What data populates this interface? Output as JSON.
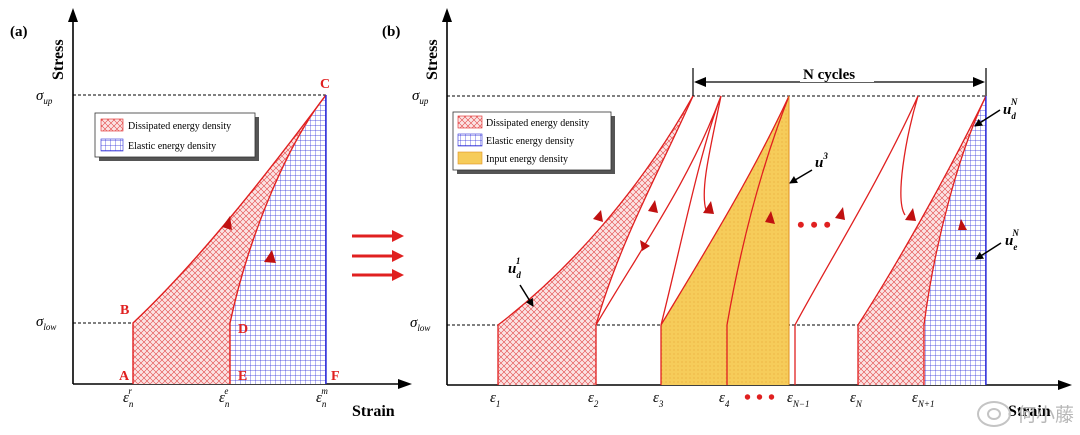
{
  "panel_a": {
    "label": "(a)",
    "y_axis_title": "Stress",
    "x_axis_title": "Strain",
    "sigma_up": "σ",
    "sigma_up_sub": "up",
    "sigma_low": "σ",
    "sigma_low_sub": "low",
    "points": {
      "A": "A",
      "B": "B",
      "C": "C",
      "D": "D",
      "E": "E",
      "F": "F"
    },
    "x_ticks": [
      {
        "main": "ε",
        "sub": "n",
        "sup": "r"
      },
      {
        "main": "ε",
        "sub": "n",
        "sup": "e"
      },
      {
        "main": "ε",
        "sub": "n",
        "sup": "m"
      }
    ],
    "legend": [
      "Dissipated energy density",
      "Elastic energy density"
    ]
  },
  "arrows_between": "⇒",
  "panel_b": {
    "label": "(b)",
    "y_axis_title": "Stress",
    "x_axis_title": "Strain",
    "sigma_up": "σ",
    "sigma_up_sub": "up",
    "sigma_low": "σ",
    "sigma_low_sub": "low",
    "n_cycles": "N cycles",
    "legend": [
      "Dissipated energy density",
      "Elastic energy density",
      "Input energy density"
    ],
    "x_ticks": [
      {
        "main": "ε",
        "sub": "1"
      },
      {
        "main": "ε",
        "sub": "2"
      },
      {
        "main": "ε",
        "sub": "3"
      },
      {
        "main": "ε",
        "sub": "4"
      },
      {
        "main": "ε",
        "sub": "N−1"
      },
      {
        "main": "ε",
        "sub": "N"
      },
      {
        "main": "ε",
        "sub": "N+1"
      }
    ],
    "ellipsis": "• • •",
    "annotations": {
      "ud1": {
        "main": "u",
        "sub": "d",
        "sup": "1"
      },
      "u3": {
        "main": "u",
        "sup": "3"
      },
      "udN": {
        "main": "u",
        "sub": "d",
        "sup": "N"
      },
      "ueN": {
        "main": "u",
        "sub": "e",
        "sup": "N"
      }
    }
  },
  "watermark": "何小藤",
  "colors": {
    "red": "#e02020",
    "blue": "#2a2ad8",
    "yellow": "#f6cc5a",
    "black": "#000000"
  }
}
